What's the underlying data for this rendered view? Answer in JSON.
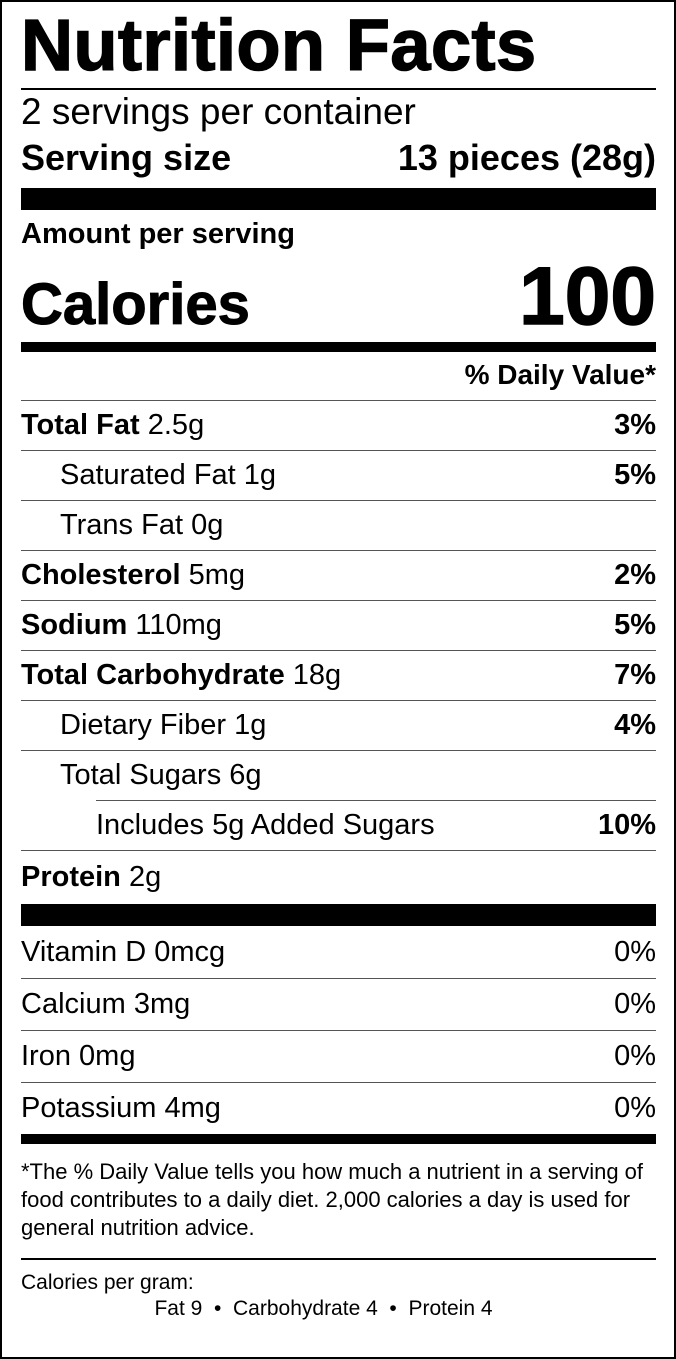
{
  "title": "Nutrition Facts",
  "servings_per_container": "2 servings per container",
  "serving_size": {
    "label": "Serving size",
    "value": "13 pieces (28g)"
  },
  "amount_per_serving": "Amount per serving",
  "calories": {
    "label": "Calories",
    "value": "100"
  },
  "daily_value_header": "% Daily Value*",
  "nutrients": [
    {
      "name": "Total Fat",
      "amount": "2.5g",
      "dv": "3%"
    },
    {
      "name": "Saturated Fat",
      "amount": "1g",
      "dv": "5%"
    },
    {
      "name": "Trans Fat",
      "amount": "0g",
      "dv": ""
    },
    {
      "name": "Cholesterol",
      "amount": "5mg",
      "dv": "2%"
    },
    {
      "name": "Sodium",
      "amount": "110mg",
      "dv": "5%"
    },
    {
      "name": "Total Carbohydrate",
      "amount": "18g",
      "dv": "7%"
    },
    {
      "name": "Dietary Fiber",
      "amount": "1g",
      "dv": "4%"
    },
    {
      "name": "Total Sugars",
      "amount": "6g",
      "dv": ""
    },
    {
      "name": "Includes 5g Added Sugars",
      "amount": "",
      "dv": "10%"
    },
    {
      "name": "Protein",
      "amount": "2g",
      "dv": ""
    }
  ],
  "vitamins": [
    {
      "name": "Vitamin D",
      "amount": "0mcg",
      "dv": "0%"
    },
    {
      "name": "Calcium",
      "amount": "3mg",
      "dv": "0%"
    },
    {
      "name": "Iron",
      "amount": "0mg",
      "dv": "0%"
    },
    {
      "name": "Potassium",
      "amount": "4mg",
      "dv": "0%"
    }
  ],
  "footnote": "*The % Daily Value tells you how much a nutrient in a serving of food contributes to a daily diet. 2,000 calories a day is used for general nutrition advice.",
  "calories_per_gram": {
    "label": "Calories per gram:",
    "values": "Fat 9  •  Carbohydrate 4  •  Protein 4"
  }
}
